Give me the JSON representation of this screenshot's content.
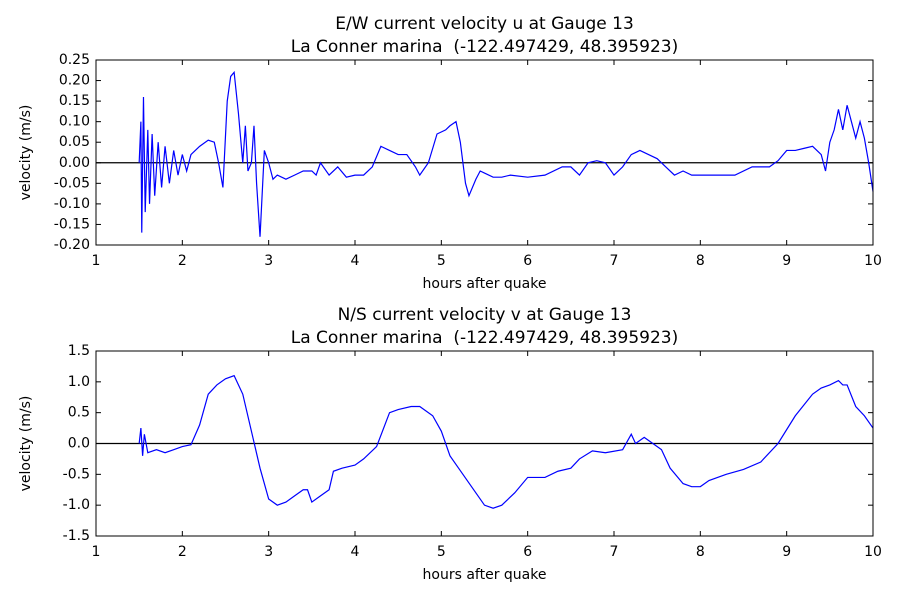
{
  "chart_data": [
    {
      "type": "line",
      "title": "E/W current velocity u at Gauge 13",
      "subtitle": "La Conner marina  (-122.497429, 48.395923)",
      "xlabel": "hours after quake",
      "ylabel": "velocity (m/s)",
      "xlim": [
        1,
        10
      ],
      "xticks": [
        1,
        2,
        3,
        4,
        5,
        6,
        7,
        8,
        9,
        10
      ],
      "ylim": [
        -0.2,
        0.25
      ],
      "yticks": [
        {
          "value": -0.2,
          "label": "-0.20"
        },
        -0.15,
        {
          "value": -0.1,
          "label": "-0.10"
        },
        -0.05,
        {
          "value": 0,
          "label": "0.00"
        },
        0.05,
        {
          "value": 0.1,
          "label": "0.10"
        },
        0.15,
        {
          "value": 0.2,
          "label": "0.20"
        },
        0.25
      ],
      "hline": 0,
      "x": [
        1.5,
        1.52,
        1.53,
        1.55,
        1.57,
        1.6,
        1.62,
        1.65,
        1.68,
        1.72,
        1.76,
        1.8,
        1.85,
        1.9,
        1.95,
        2.0,
        2.05,
        2.1,
        2.2,
        2.3,
        2.37,
        2.42,
        2.47,
        2.52,
        2.56,
        2.6,
        2.65,
        2.7,
        2.73,
        2.76,
        2.8,
        2.83,
        2.86,
        2.9,
        2.95,
        3.0,
        3.05,
        3.1,
        3.2,
        3.3,
        3.4,
        3.5,
        3.55,
        3.6,
        3.7,
        3.8,
        3.9,
        4.0,
        4.1,
        4.2,
        4.3,
        4.4,
        4.5,
        4.6,
        4.7,
        4.75,
        4.85,
        4.95,
        5.05,
        5.1,
        5.17,
        5.22,
        5.28,
        5.32,
        5.4,
        5.45,
        5.5,
        5.6,
        5.7,
        5.8,
        6.0,
        6.2,
        6.4,
        6.5,
        6.6,
        6.7,
        6.8,
        6.9,
        7.0,
        7.1,
        7.2,
        7.3,
        7.4,
        7.5,
        7.6,
        7.7,
        7.8,
        7.9,
        8.0,
        8.2,
        8.4,
        8.6,
        8.8,
        8.9,
        9.0,
        9.1,
        9.2,
        9.3,
        9.4,
        9.45,
        9.5,
        9.55,
        9.6,
        9.65,
        9.7,
        9.75,
        9.8,
        9.85,
        9.9,
        9.95,
        10.0
      ],
      "series": [
        {
          "name": "u",
          "color": "#0000ff",
          "values": [
            0.0,
            0.1,
            -0.17,
            0.16,
            -0.12,
            0.08,
            -0.1,
            0.07,
            -0.08,
            0.05,
            -0.06,
            0.04,
            -0.05,
            0.03,
            -0.03,
            0.02,
            -0.02,
            0.02,
            0.04,
            0.055,
            0.05,
            0.0,
            -0.06,
            0.15,
            0.21,
            0.22,
            0.12,
            0.0,
            0.09,
            -0.02,
            0.0,
            0.09,
            -0.05,
            -0.18,
            0.03,
            0.0,
            -0.04,
            -0.03,
            -0.04,
            -0.03,
            -0.02,
            -0.02,
            -0.03,
            0.0,
            -0.03,
            -0.01,
            -0.035,
            -0.03,
            -0.03,
            -0.01,
            0.04,
            0.03,
            0.02,
            0.02,
            -0.01,
            -0.03,
            0.0,
            0.07,
            0.08,
            0.09,
            0.1,
            0.05,
            -0.05,
            -0.08,
            -0.04,
            -0.02,
            -0.025,
            -0.035,
            -0.035,
            -0.03,
            -0.035,
            -0.03,
            -0.01,
            -0.01,
            -0.03,
            0.0,
            0.005,
            0.0,
            -0.03,
            -0.01,
            0.02,
            0.03,
            0.02,
            0.01,
            -0.01,
            -0.03,
            -0.02,
            -0.03,
            -0.03,
            -0.03,
            -0.03,
            -0.01,
            -0.01,
            0.005,
            0.03,
            0.03,
            0.035,
            0.04,
            0.02,
            -0.02,
            0.05,
            0.08,
            0.13,
            0.08,
            0.14,
            0.1,
            0.06,
            0.1,
            0.06,
            0.0,
            -0.07
          ]
        }
      ]
    },
    {
      "type": "line",
      "title": "N/S current velocity v at Gauge 13",
      "subtitle": "La Conner marina  (-122.497429, 48.395923)",
      "xlabel": "hours after quake",
      "ylabel": "velocity (m/s)",
      "xlim": [
        1,
        10
      ],
      "xticks": [
        1,
        2,
        3,
        4,
        5,
        6,
        7,
        8,
        9,
        10
      ],
      "ylim": [
        -1.5,
        1.5
      ],
      "yticks": [
        -1.5,
        {
          "value": -1,
          "label": "-1.0"
        },
        -0.5,
        {
          "value": 0,
          "label": "0.0"
        },
        0.5,
        {
          "value": 1,
          "label": "1.0"
        },
        1.5
      ],
      "hline": 0,
      "x": [
        1.5,
        1.52,
        1.54,
        1.56,
        1.6,
        1.7,
        1.8,
        1.9,
        2.0,
        2.1,
        2.2,
        2.3,
        2.4,
        2.5,
        2.6,
        2.7,
        2.8,
        2.9,
        3.0,
        3.1,
        3.2,
        3.3,
        3.4,
        3.45,
        3.5,
        3.6,
        3.7,
        3.75,
        3.85,
        4.0,
        4.1,
        4.25,
        4.4,
        4.5,
        4.65,
        4.75,
        4.9,
        5.0,
        5.1,
        5.2,
        5.35,
        5.5,
        5.6,
        5.7,
        5.85,
        6.0,
        6.2,
        6.35,
        6.5,
        6.6,
        6.75,
        6.9,
        7.1,
        7.2,
        7.25,
        7.35,
        7.45,
        7.55,
        7.65,
        7.8,
        7.9,
        8.0,
        8.1,
        8.3,
        8.5,
        8.7,
        8.9,
        9.1,
        9.3,
        9.4,
        9.5,
        9.6,
        9.65,
        9.7,
        9.8,
        9.9,
        10.0
      ],
      "series": [
        {
          "name": "v",
          "color": "#0000ff",
          "values": [
            0.0,
            0.25,
            -0.2,
            0.15,
            -0.15,
            -0.1,
            -0.15,
            -0.1,
            -0.05,
            -0.02,
            0.3,
            0.8,
            0.95,
            1.05,
            1.1,
            0.8,
            0.2,
            -0.4,
            -0.9,
            -1.0,
            -0.95,
            -0.85,
            -0.75,
            -0.75,
            -0.95,
            -0.85,
            -0.75,
            -0.45,
            -0.4,
            -0.35,
            -0.25,
            -0.05,
            0.5,
            0.55,
            0.6,
            0.6,
            0.45,
            0.2,
            -0.2,
            -0.4,
            -0.7,
            -1.0,
            -1.05,
            -1.0,
            -0.8,
            -0.55,
            -0.55,
            -0.45,
            -0.4,
            -0.25,
            -0.12,
            -0.15,
            -0.1,
            0.15,
            0.0,
            0.1,
            0.0,
            -0.1,
            -0.4,
            -0.65,
            -0.7,
            -0.7,
            -0.6,
            -0.5,
            -0.42,
            -0.3,
            0.0,
            0.45,
            0.8,
            0.9,
            0.95,
            1.02,
            0.95,
            0.95,
            0.6,
            0.45,
            0.25
          ]
        }
      ]
    }
  ]
}
